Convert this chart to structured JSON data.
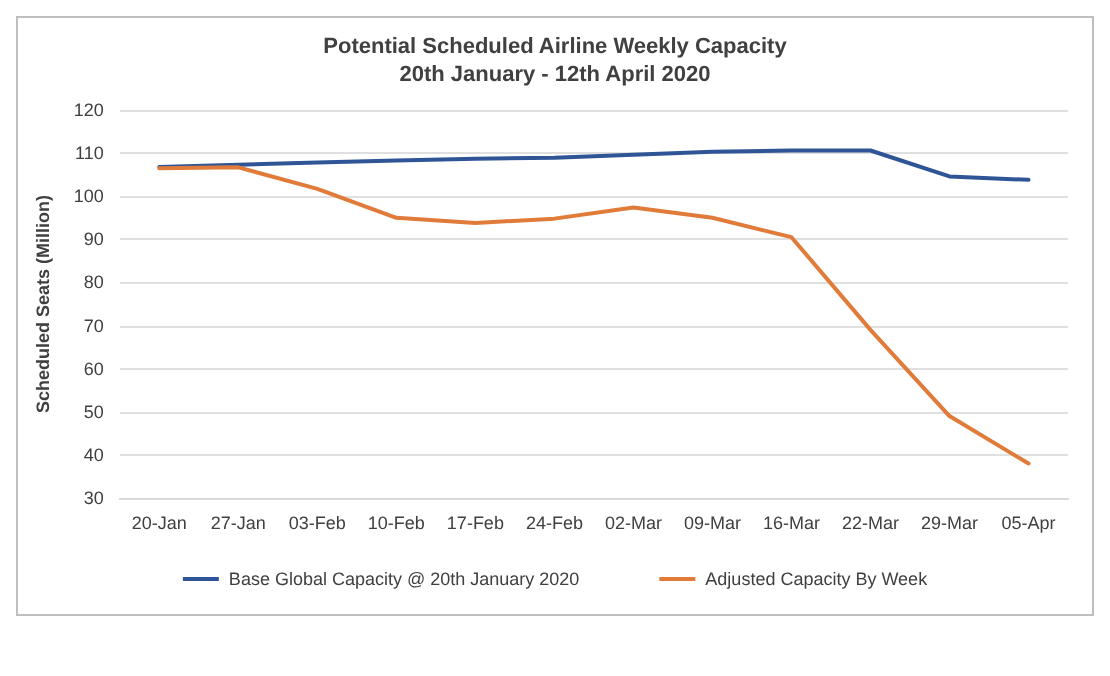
{
  "chart_data": {
    "type": "line",
    "title": "Potential Scheduled Airline Weekly Capacity",
    "subtitle": "20th January - 12th April 2020",
    "ylabel": "Scheduled Seats (Million)",
    "categories": [
      "20-Jan",
      "27-Jan",
      "03-Feb",
      "10-Feb",
      "17-Feb",
      "24-Feb",
      "02-Mar",
      "09-Mar",
      "16-Mar",
      "22-Mar",
      "29-Mar",
      "05-Apr"
    ],
    "series": [
      {
        "name": "Base Global Capacity @ 20th January 2020",
        "color": "#2f5597",
        "values": [
          106.8,
          107.3,
          107.8,
          108.3,
          108.7,
          108.9,
          109.6,
          110.3,
          110.6,
          110.6,
          104.6,
          103.8
        ]
      },
      {
        "name": "Adjusted Capacity By Week",
        "color": "#e07b39",
        "values": [
          106.5,
          106.7,
          101.7,
          95,
          93.8,
          94.8,
          97.4,
          95,
          90.5,
          69,
          49,
          38
        ]
      }
    ],
    "ylim": [
      30,
      120
    ],
    "yticks": [
      30,
      40,
      50,
      60,
      70,
      80,
      90,
      100,
      110,
      120
    ],
    "grid": "y",
    "legend": "bottom",
    "marker": "none",
    "line_style": "solid"
  }
}
